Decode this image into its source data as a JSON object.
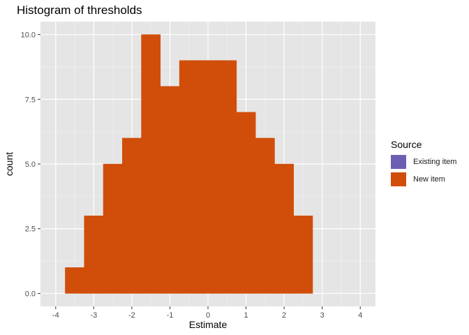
{
  "chart_data": {
    "type": "bar",
    "title": "Histogram of thresholds",
    "xlabel": "Estimate",
    "ylabel": "count",
    "xlim": [
      -4.4,
      4.4
    ],
    "ylim": [
      -0.5,
      10.5
    ],
    "x_ticks": [
      -4,
      -3,
      -2,
      -1,
      0,
      1,
      2,
      3,
      4
    ],
    "x_tick_labels": [
      "-4",
      "-3",
      "-2",
      "-1",
      "0",
      "1",
      "2",
      "3",
      "4"
    ],
    "y_ticks": [
      0,
      2.5,
      5,
      7.5,
      10
    ],
    "y_tick_labels": [
      "0.0",
      "2.5",
      "5.0",
      "7.5",
      "10.0"
    ],
    "grid": true,
    "legend_position": "right",
    "legend": {
      "title": "Source",
      "items": [
        {
          "label": "Existing item",
          "color": "#6a5fb3"
        },
        {
          "label": "New item",
          "color": "#d04e0a"
        }
      ]
    },
    "bin_width": 0.5,
    "series": [
      {
        "name": "New item",
        "color": "#d04e0a",
        "bin_starts": [
          -3.75,
          -3.25,
          -2.75,
          -2.25,
          -1.75,
          -1.25,
          -0.75,
          -0.25,
          0.25,
          0.75,
          1.25,
          1.75,
          2.25
        ],
        "values": [
          1,
          3,
          5,
          6,
          10,
          8,
          9,
          9,
          9,
          7,
          6,
          5,
          3
        ]
      }
    ]
  },
  "colors": {
    "panel_background": "#e5e5e5",
    "grid_major": "#ffffff",
    "grid_minor": "#f2f2f2"
  }
}
